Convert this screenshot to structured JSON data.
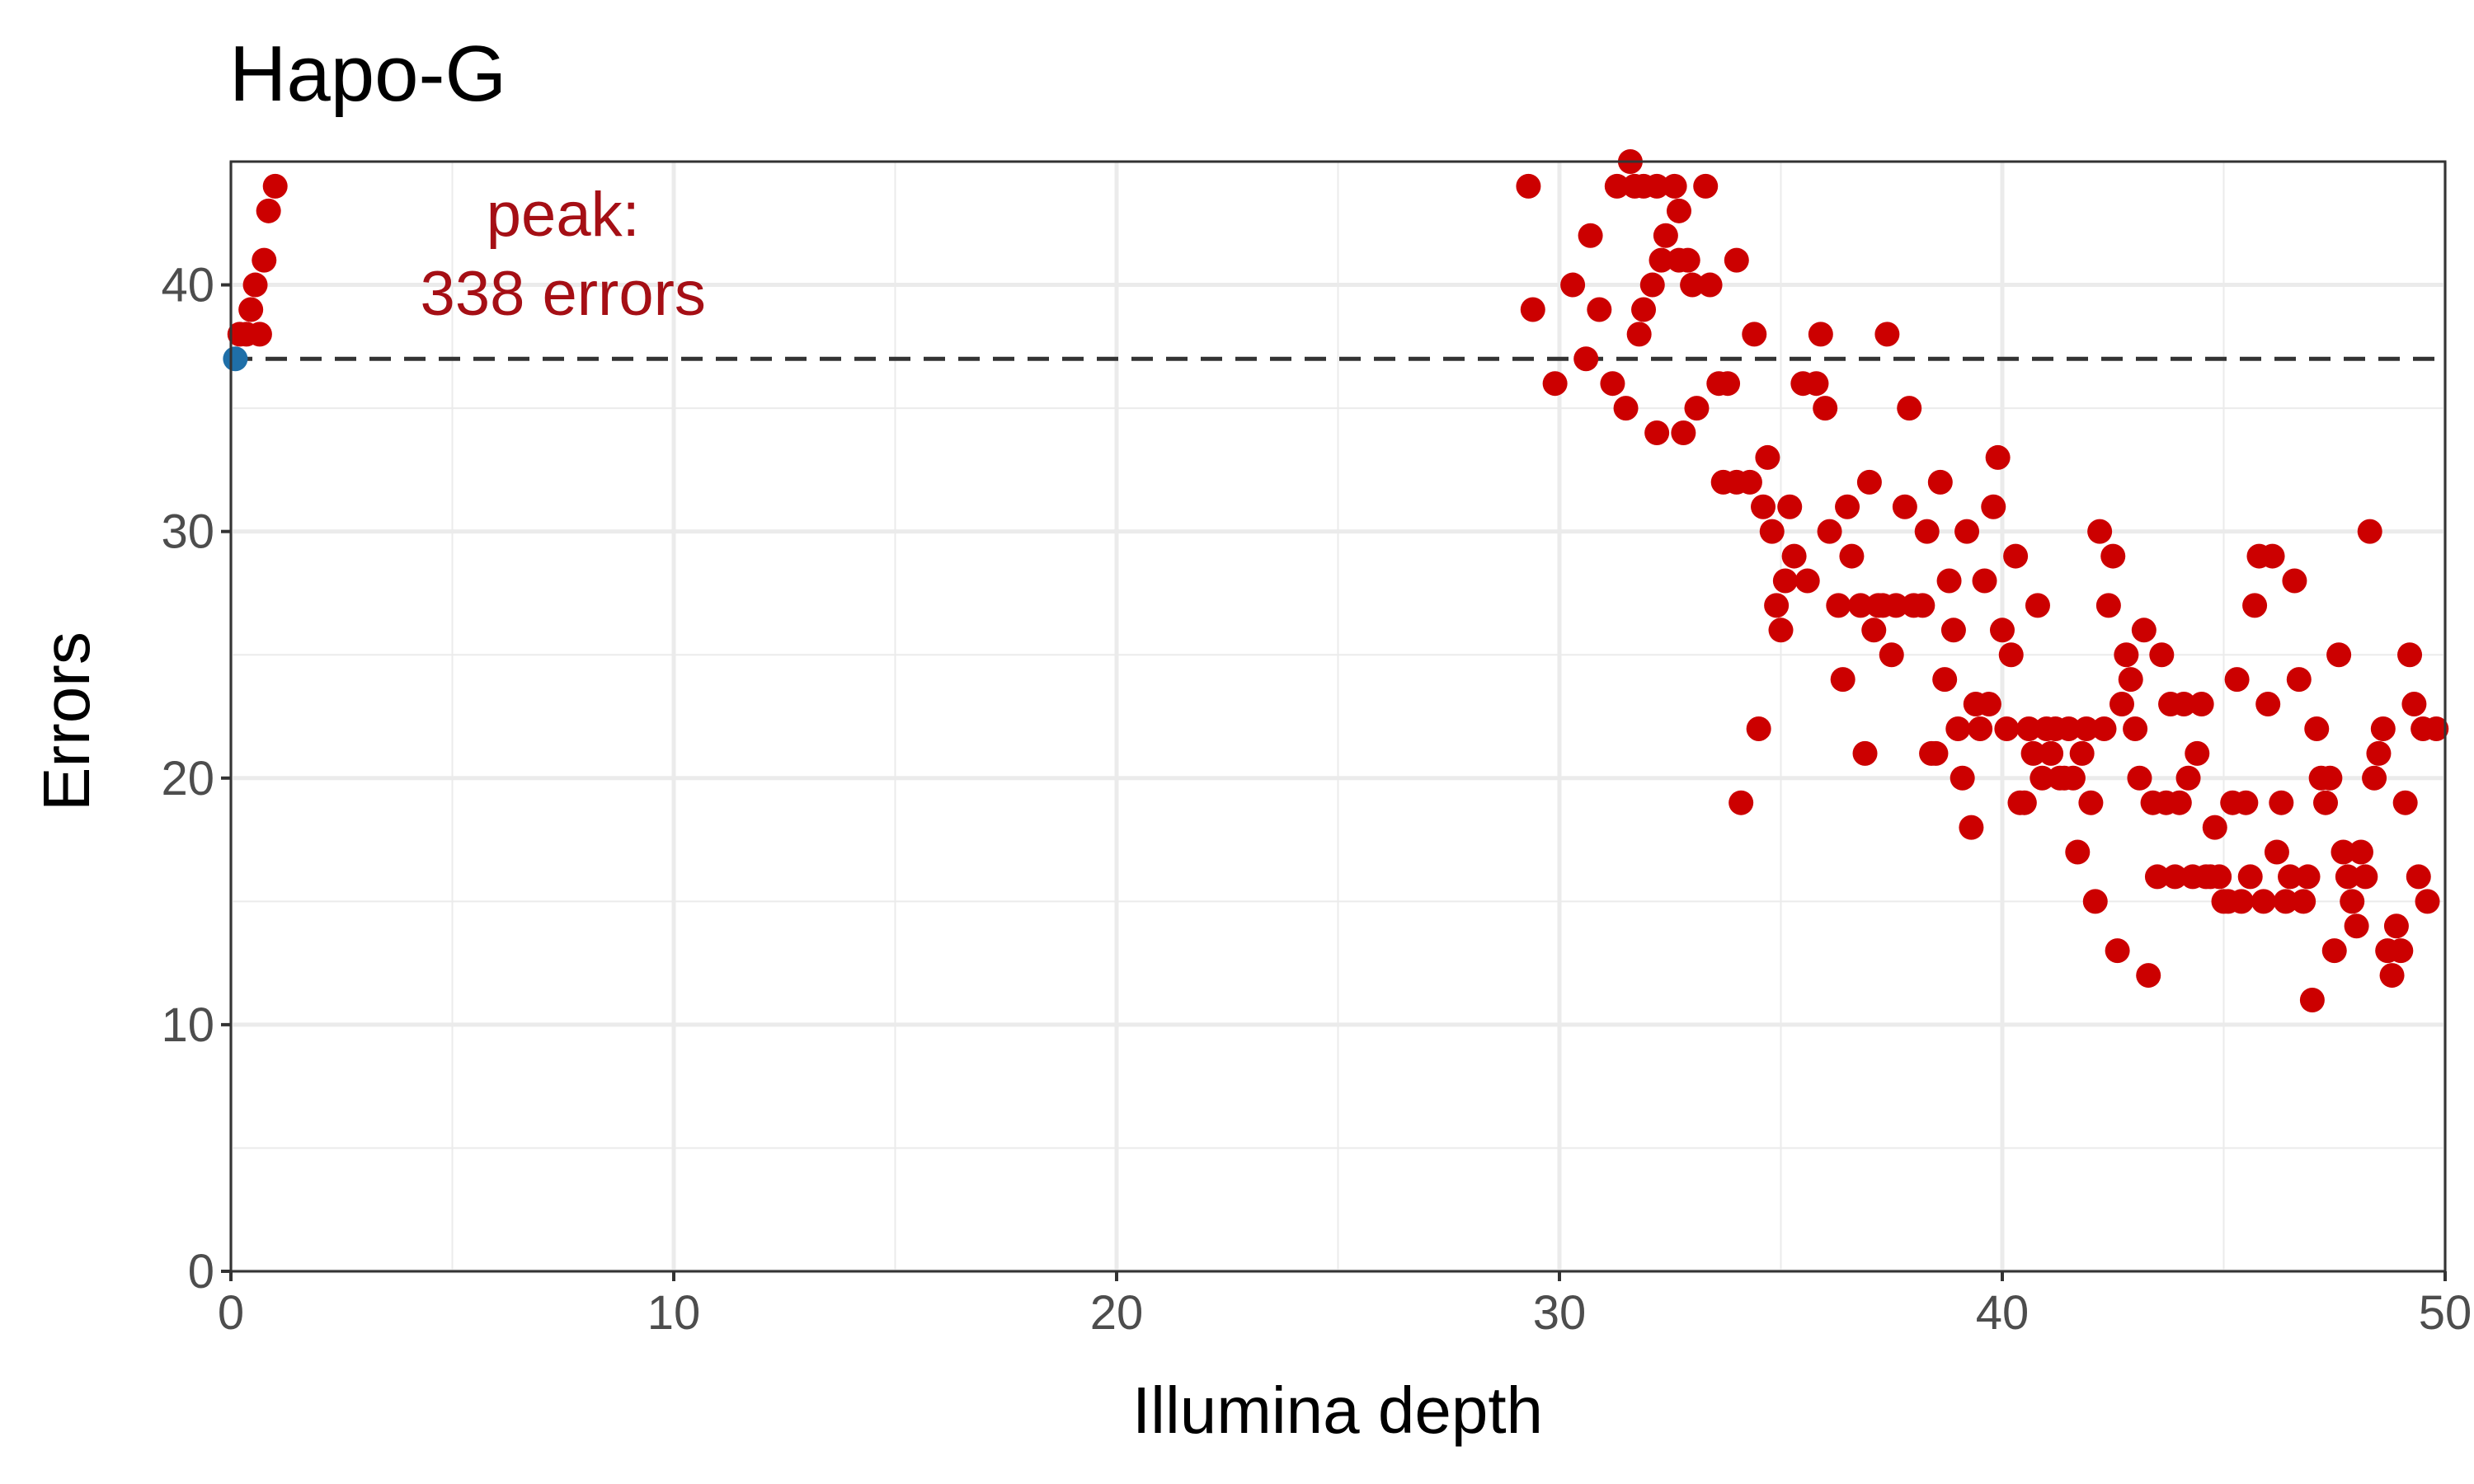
{
  "chart_data": {
    "type": "scatter",
    "title": "Hapo-G",
    "xlabel": "Illumina depth",
    "ylabel": "Errors",
    "xlim": [
      0,
      50
    ],
    "ylim": [
      0,
      45
    ],
    "xticks": [
      0,
      10,
      20,
      30,
      40,
      50
    ],
    "yticks": [
      0,
      10,
      20,
      30,
      40
    ],
    "x_tick_labels": [
      "0",
      "10",
      "20",
      "30",
      "40",
      "50"
    ],
    "y_tick_labels": [
      "0",
      "10",
      "20",
      "30",
      "40"
    ],
    "grid": true,
    "reference_line": {
      "y": 37,
      "style": "dashed",
      "color": "#333333"
    },
    "annotation": {
      "lines": [
        "peak:",
        "338 errors"
      ],
      "x": 7.5,
      "color": "#a50f15"
    },
    "series": [
      {
        "color": "#cc0000",
        "points": [
          [
            0.2,
            38
          ],
          [
            0.35,
            38
          ],
          [
            0.45,
            39
          ],
          [
            0.55,
            40
          ],
          [
            0.65,
            38
          ],
          [
            0.75,
            41
          ],
          [
            0.85,
            43
          ],
          [
            1.0,
            44
          ],
          [
            29.3,
            44
          ],
          [
            29.4,
            39
          ],
          [
            29.9,
            36
          ],
          [
            30.3,
            40
          ],
          [
            30.6,
            37
          ],
          [
            30.7,
            42
          ],
          [
            30.9,
            39
          ],
          [
            31.2,
            36
          ],
          [
            31.3,
            44
          ],
          [
            31.5,
            35
          ],
          [
            31.6,
            45
          ],
          [
            31.7,
            44
          ],
          [
            31.9,
            44
          ],
          [
            32.2,
            44
          ],
          [
            31.8,
            38
          ],
          [
            31.9,
            39
          ],
          [
            32.1,
            40
          ],
          [
            32.2,
            34
          ],
          [
            32.3,
            41
          ],
          [
            32.4,
            42
          ],
          [
            32.6,
            44
          ],
          [
            32.7,
            43
          ],
          [
            32.7,
            41
          ],
          [
            32.8,
            34
          ],
          [
            32.9,
            41
          ],
          [
            33.0,
            40
          ],
          [
            33.1,
            35
          ],
          [
            33.3,
            44
          ],
          [
            33.4,
            40
          ],
          [
            33.6,
            36
          ],
          [
            33.8,
            36
          ],
          [
            33.7,
            32
          ],
          [
            34.0,
            32
          ],
          [
            34.0,
            41
          ],
          [
            34.1,
            19
          ],
          [
            34.3,
            32
          ],
          [
            34.4,
            38
          ],
          [
            34.5,
            22
          ],
          [
            34.6,
            31
          ],
          [
            34.7,
            33
          ],
          [
            34.8,
            30
          ],
          [
            34.9,
            27
          ],
          [
            35.0,
            26
          ],
          [
            35.1,
            28
          ],
          [
            35.2,
            31
          ],
          [
            35.3,
            29
          ],
          [
            35.5,
            36
          ],
          [
            35.6,
            28
          ],
          [
            35.8,
            36
          ],
          [
            35.9,
            38
          ],
          [
            36.0,
            35
          ],
          [
            36.1,
            30
          ],
          [
            36.3,
            27
          ],
          [
            36.4,
            24
          ],
          [
            36.5,
            31
          ],
          [
            36.6,
            29
          ],
          [
            36.8,
            27
          ],
          [
            36.9,
            21
          ],
          [
            37.0,
            32
          ],
          [
            37.1,
            26
          ],
          [
            37.2,
            27
          ],
          [
            37.3,
            27
          ],
          [
            37.4,
            38
          ],
          [
            37.5,
            25
          ],
          [
            37.6,
            27
          ],
          [
            37.8,
            31
          ],
          [
            37.9,
            35
          ],
          [
            38.0,
            27
          ],
          [
            38.2,
            27
          ],
          [
            38.3,
            30
          ],
          [
            38.4,
            21
          ],
          [
            38.5,
            21
          ],
          [
            38.6,
            32
          ],
          [
            38.7,
            24
          ],
          [
            38.8,
            28
          ],
          [
            38.9,
            26
          ],
          [
            39.0,
            22
          ],
          [
            39.1,
            20
          ],
          [
            39.2,
            30
          ],
          [
            39.3,
            18
          ],
          [
            39.4,
            23
          ],
          [
            39.5,
            22
          ],
          [
            39.6,
            28
          ],
          [
            39.7,
            23
          ],
          [
            39.8,
            31
          ],
          [
            39.9,
            33
          ],
          [
            40.0,
            26
          ],
          [
            40.1,
            22
          ],
          [
            40.2,
            25
          ],
          [
            40.3,
            29
          ],
          [
            40.4,
            19
          ],
          [
            40.5,
            19
          ],
          [
            40.6,
            22
          ],
          [
            40.7,
            21
          ],
          [
            40.8,
            27
          ],
          [
            40.9,
            20
          ],
          [
            41.0,
            22
          ],
          [
            41.1,
            21
          ],
          [
            41.2,
            22
          ],
          [
            41.3,
            20
          ],
          [
            41.4,
            20
          ],
          [
            41.5,
            22
          ],
          [
            41.6,
            20
          ],
          [
            41.7,
            17
          ],
          [
            41.8,
            21
          ],
          [
            41.9,
            22
          ],
          [
            42.0,
            19
          ],
          [
            42.1,
            15
          ],
          [
            42.2,
            30
          ],
          [
            42.3,
            22
          ],
          [
            42.4,
            27
          ],
          [
            42.5,
            29
          ],
          [
            42.6,
            13
          ],
          [
            42.7,
            23
          ],
          [
            42.8,
            25
          ],
          [
            42.9,
            24
          ],
          [
            43.0,
            22
          ],
          [
            43.1,
            20
          ],
          [
            43.2,
            26
          ],
          [
            43.3,
            12
          ],
          [
            43.4,
            19
          ],
          [
            43.5,
            16
          ],
          [
            43.6,
            25
          ],
          [
            43.7,
            19
          ],
          [
            43.8,
            23
          ],
          [
            43.9,
            16
          ],
          [
            44.0,
            19
          ],
          [
            44.1,
            23
          ],
          [
            44.2,
            20
          ],
          [
            44.3,
            16
          ],
          [
            44.4,
            21
          ],
          [
            44.5,
            23
          ],
          [
            44.6,
            16
          ],
          [
            44.7,
            16
          ],
          [
            44.8,
            18
          ],
          [
            44.9,
            16
          ],
          [
            45.0,
            15
          ],
          [
            45.1,
            15
          ],
          [
            45.2,
            19
          ],
          [
            45.3,
            24
          ],
          [
            45.4,
            15
          ],
          [
            45.5,
            19
          ],
          [
            45.6,
            16
          ],
          [
            45.7,
            27
          ],
          [
            45.8,
            29
          ],
          [
            45.9,
            15
          ],
          [
            46.0,
            23
          ],
          [
            46.1,
            29
          ],
          [
            46.2,
            17
          ],
          [
            46.3,
            19
          ],
          [
            46.4,
            15
          ],
          [
            46.5,
            16
          ],
          [
            46.6,
            28
          ],
          [
            46.7,
            24
          ],
          [
            46.8,
            15
          ],
          [
            46.9,
            16
          ],
          [
            47.0,
            11
          ],
          [
            47.1,
            22
          ],
          [
            47.2,
            20
          ],
          [
            47.3,
            19
          ],
          [
            47.4,
            20
          ],
          [
            47.5,
            13
          ],
          [
            47.6,
            25
          ],
          [
            47.7,
            17
          ],
          [
            47.8,
            16
          ],
          [
            47.9,
            15
          ],
          [
            48.0,
            14
          ],
          [
            48.1,
            17
          ],
          [
            48.2,
            16
          ],
          [
            48.3,
            30
          ],
          [
            48.4,
            20
          ],
          [
            48.5,
            21
          ],
          [
            48.6,
            22
          ],
          [
            48.7,
            13
          ],
          [
            48.8,
            12
          ],
          [
            48.9,
            14
          ],
          [
            49.0,
            13
          ],
          [
            49.1,
            19
          ],
          [
            49.2,
            25
          ],
          [
            49.3,
            23
          ],
          [
            49.4,
            16
          ],
          [
            49.5,
            22
          ],
          [
            49.6,
            15
          ],
          [
            49.8,
            22
          ]
        ]
      },
      {
        "color": "#1f6fa8",
        "points": [
          [
            0.1,
            37
          ]
        ]
      }
    ]
  }
}
